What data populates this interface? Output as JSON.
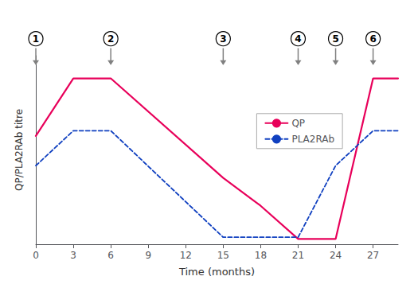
{
  "chart_data": {
    "type": "line",
    "x": [
      0,
      3,
      6,
      15,
      18,
      21,
      24,
      27,
      29
    ],
    "series": [
      {
        "name": "QP",
        "color": "#E8005A",
        "line_style": "solid",
        "values": [
          0.62,
          0.95,
          0.95,
          0.38,
          0.22,
          0.03,
          0.03,
          0.95,
          0.95
        ]
      },
      {
        "name": "PLA2RAb",
        "color": "#1040C0",
        "line_style": "dashed",
        "values": [
          0.45,
          0.65,
          0.65,
          0.04,
          0.04,
          0.04,
          0.45,
          0.65,
          0.65
        ]
      }
    ],
    "xlabel": "Time (months)",
    "ylabel": "QP/PLA2RAb titre",
    "xlim": [
      0,
      29
    ],
    "xticks": [
      0,
      3,
      6,
      9,
      12,
      15,
      18,
      21,
      24,
      27
    ],
    "ylim": [
      0,
      1.08
    ],
    "yticks": [],
    "tick_labels": "x",
    "grid": false,
    "legend": "right",
    "annotations": [
      {
        "text": "1",
        "x": 0
      },
      {
        "text": "2",
        "x": 6
      },
      {
        "text": "3",
        "x": 15
      },
      {
        "text": "4",
        "x": 21
      },
      {
        "text": "5",
        "x": 24
      },
      {
        "text": "6",
        "x": 27
      }
    ]
  }
}
